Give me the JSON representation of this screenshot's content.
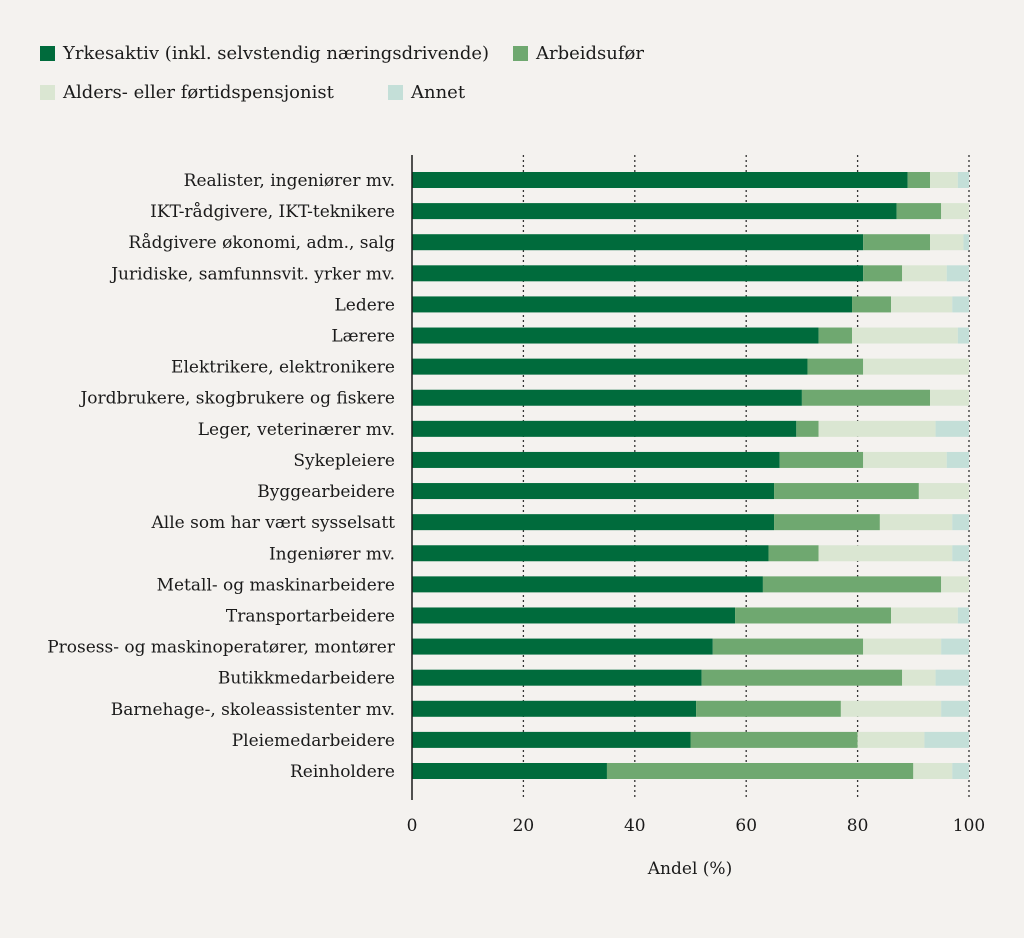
{
  "chart_data": {
    "type": "bar",
    "orientation": "horizontal",
    "stacked": true,
    "title": "",
    "xlabel": "Andel (%)",
    "ylabel": "",
    "xlim": [
      0,
      100
    ],
    "xticks": [
      "0",
      "20",
      "40",
      "60",
      "80",
      "100"
    ],
    "grid": "vertical dotted",
    "legend_position": "top",
    "categories": [
      "Realister, ingeniører mv.",
      "IKT-rådgivere, IKT-teknikere",
      "Rådgivere økonomi, adm., salg",
      "Juridiske, samfunnsvit. yrker mv.",
      "Ledere",
      "Lærere",
      "Elektrikere, elektronikere",
      "Jordbrukere, skogbrukere og fiskere",
      "Leger, veterinærer mv.",
      "Sykepleiere",
      "Byggearbeidere",
      "Alle som har vært sysselsatt",
      "Ingeniører mv.",
      "Metall- og maskinarbeidere",
      "Transportarbeidere",
      "Prosess- og maskinoperatører, montører",
      "Butikkmedarbeidere",
      "Barnehage-, skoleassistenter mv.",
      "Pleiemedarbeidere",
      "Reinholdere"
    ],
    "series": [
      {
        "name": "Yrkesaktiv (inkl. selvstendig næringsdrivende)",
        "color": "#006b3c",
        "values": [
          89,
          87,
          81,
          81,
          79,
          73,
          71,
          70,
          69,
          66,
          65,
          65,
          64,
          63,
          58,
          54,
          52,
          51,
          50,
          35
        ]
      },
      {
        "name": "Arbeidsufør",
        "color": "#6fa870",
        "values": [
          4,
          8,
          12,
          7,
          7,
          6,
          10,
          23,
          4,
          15,
          26,
          19,
          9,
          32,
          28,
          27,
          36,
          26,
          30,
          55
        ]
      },
      {
        "name": "Alders- eller førtidspensjonist",
        "color": "#dae6d2",
        "values": [
          5,
          5,
          6,
          8,
          11,
          19,
          19,
          7,
          21,
          15,
          9,
          13,
          24,
          5,
          12,
          14,
          6,
          18,
          12,
          7
        ]
      },
      {
        "name": "Annet",
        "color": "#c4dfd8",
        "values": [
          2,
          0,
          1,
          4,
          3,
          2,
          0,
          0,
          6,
          4,
          0,
          3,
          3,
          0,
          2,
          5,
          6,
          5,
          8,
          3
        ]
      }
    ]
  }
}
